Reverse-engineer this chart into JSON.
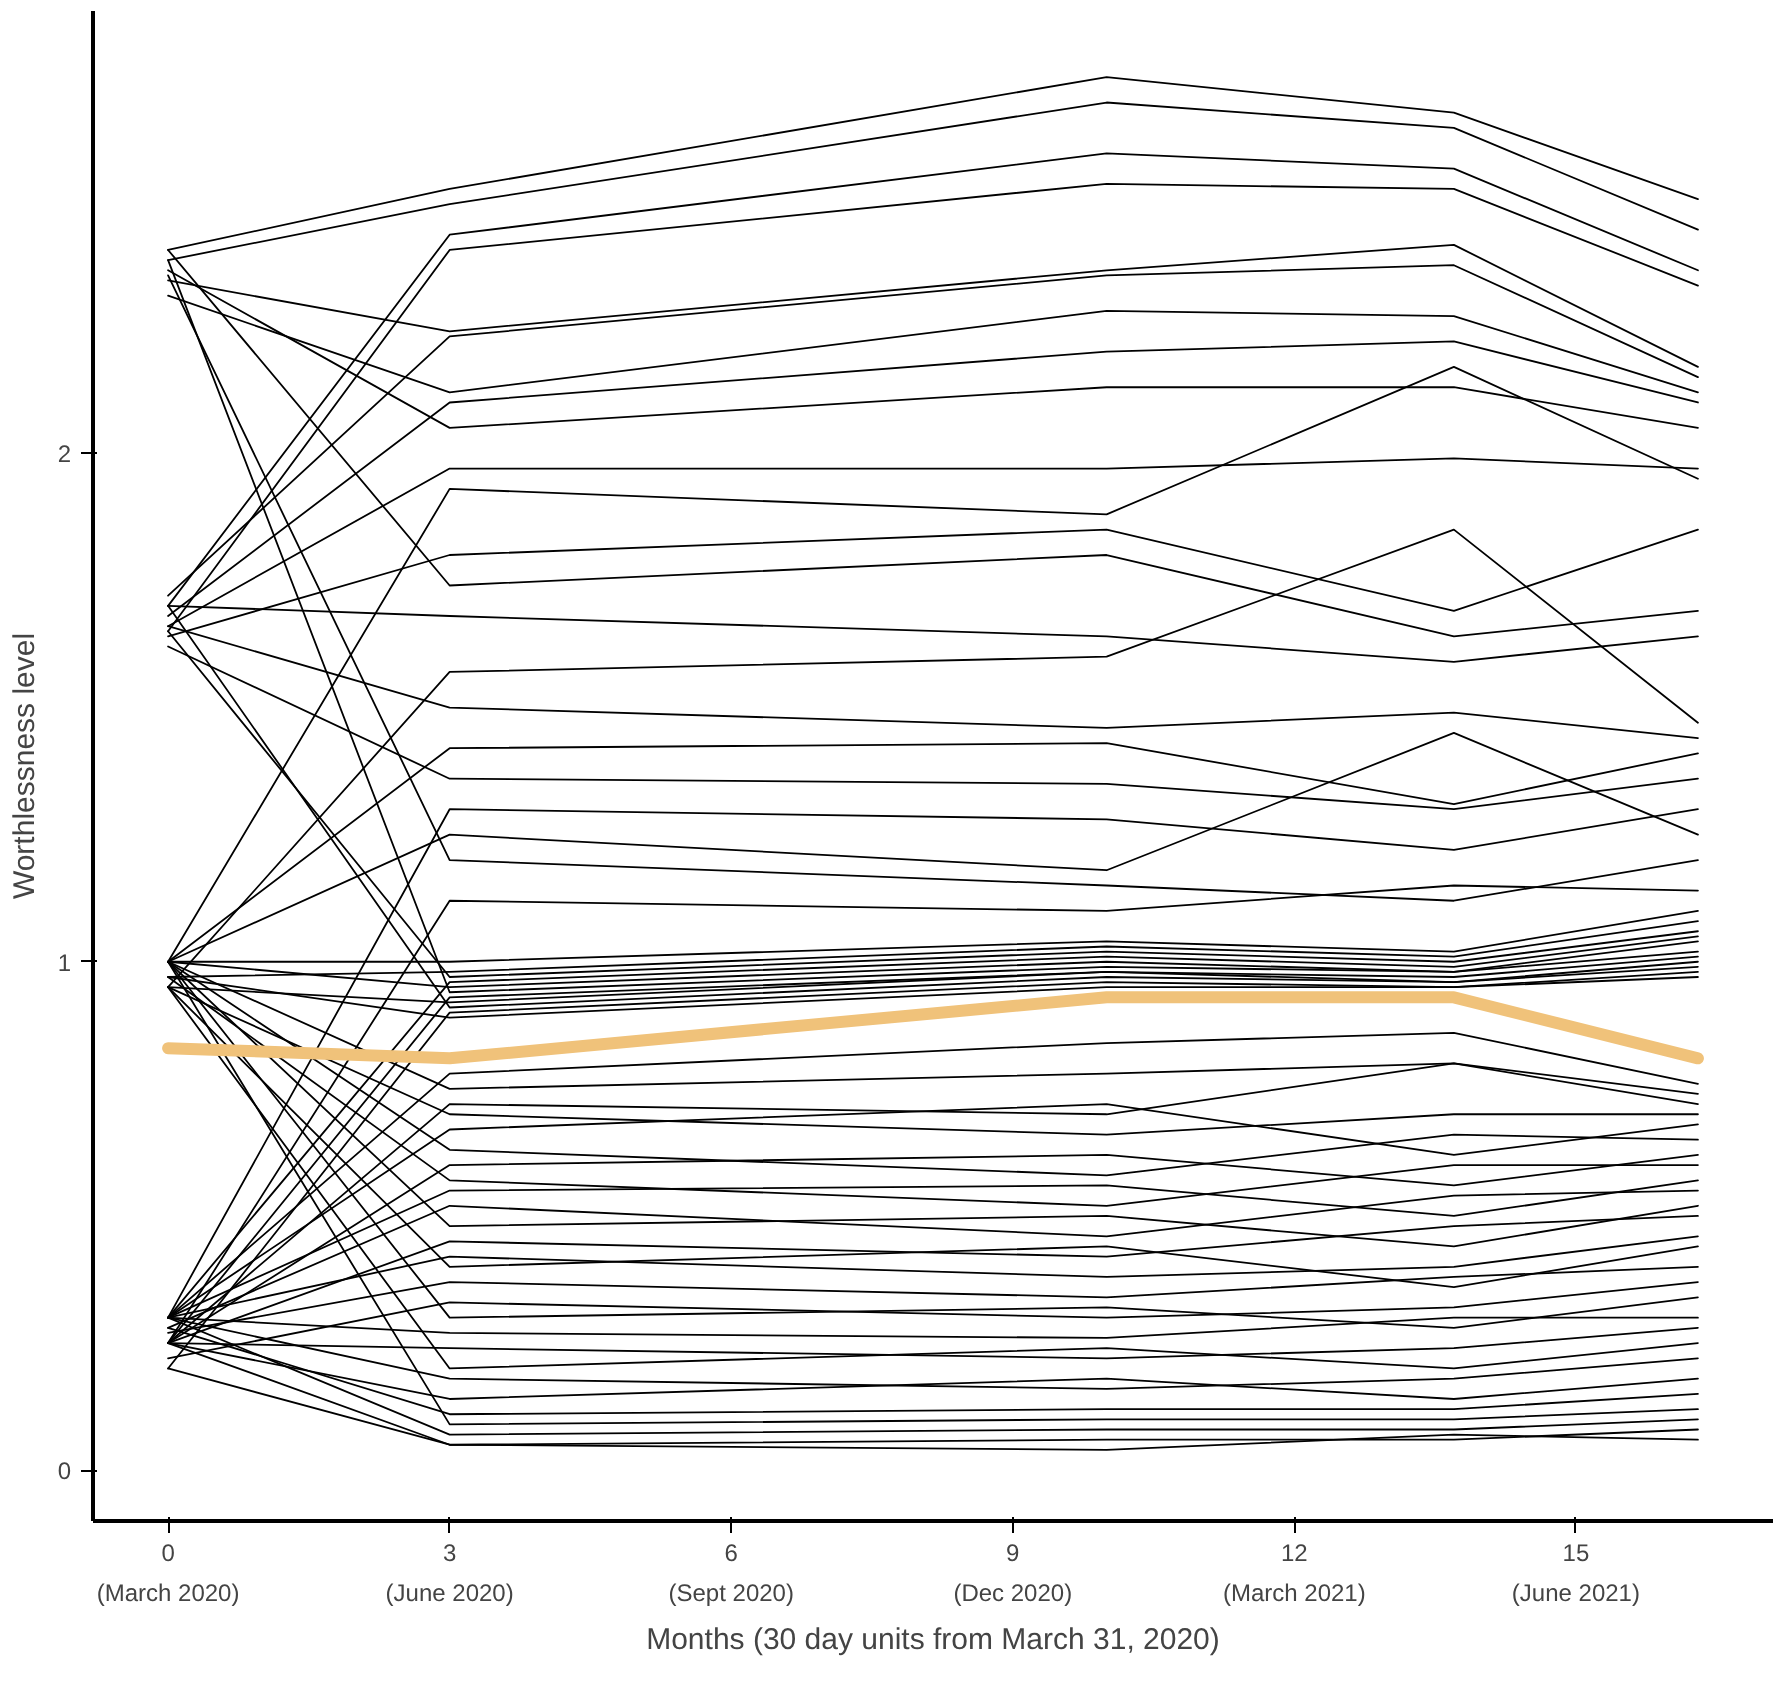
{
  "chart_data": {
    "type": "line",
    "xlabel": "Months (30 day units from March 31, 2020)",
    "ylabel": "Worthlessness level",
    "x": [
      0,
      3,
      10,
      13.7,
      16.3
    ],
    "xlim": [
      -0.8,
      17.1
    ],
    "xticks": [
      0,
      3,
      6,
      9,
      12,
      15
    ],
    "annotations": [
      "(March 2020)",
      "(June 2020)",
      "(Sept 2020)",
      "(Dec 2020)",
      "(March 2021)",
      "(June 2021)"
    ],
    "ylim": [
      -0.1,
      2.87
    ],
    "yticks": [
      0,
      1,
      2
    ],
    "grid": false,
    "marker": "none",
    "line_style": "solid",
    "color": "#000000",
    "series": [
      {
        "values": [
          2.4,
          2.52,
          2.74,
          2.67,
          2.5
        ]
      },
      {
        "values": [
          2.38,
          2.49,
          2.69,
          2.64,
          2.44
        ]
      },
      {
        "values": [
          1.7,
          2.43,
          2.59,
          2.56,
          2.36
        ]
      },
      {
        "values": [
          1.65,
          2.4,
          2.53,
          2.52,
          2.33
        ]
      },
      {
        "values": [
          2.34,
          2.24,
          2.36,
          2.41,
          2.17
        ]
      },
      {
        "values": [
          1.72,
          2.23,
          2.35,
          2.37,
          2.15
        ]
      },
      {
        "values": [
          2.31,
          2.12,
          2.28,
          2.27,
          2.12
        ]
      },
      {
        "values": [
          1.68,
          2.1,
          2.2,
          2.22,
          2.1
        ]
      },
      {
        "values": [
          2.36,
          2.05,
          2.13,
          2.13,
          2.05
        ]
      },
      {
        "values": [
          1.66,
          1.97,
          1.97,
          1.99,
          1.97
        ]
      },
      {
        "values": [
          1.0,
          1.93,
          1.88,
          2.17,
          1.95
        ]
      },
      {
        "values": [
          1.64,
          1.8,
          1.85,
          1.69,
          1.85
        ]
      },
      {
        "values": [
          2.4,
          1.74,
          1.8,
          1.64,
          1.69
        ]
      },
      {
        "values": [
          1.7,
          1.68,
          1.64,
          1.59,
          1.64
        ]
      },
      {
        "values": [
          0.95,
          1.57,
          1.6,
          1.85,
          1.47
        ]
      },
      {
        "values": [
          1.66,
          1.5,
          1.46,
          1.49,
          1.44
        ]
      },
      {
        "values": [
          1.0,
          1.42,
          1.43,
          1.31,
          1.41
        ]
      },
      {
        "values": [
          1.62,
          1.36,
          1.35,
          1.3,
          1.36
        ]
      },
      {
        "values": [
          0.3,
          1.3,
          1.28,
          1.22,
          1.3
        ]
      },
      {
        "values": [
          1.0,
          1.25,
          1.18,
          1.45,
          1.25
        ]
      },
      {
        "values": [
          2.35,
          1.2,
          1.15,
          1.12,
          1.2
        ]
      },
      {
        "values": [
          0.25,
          1.12,
          1.1,
          1.15,
          1.14
        ]
      },
      {
        "values": [
          1.0,
          1.0,
          1.04,
          1.02,
          1.1
        ]
      },
      {
        "values": [
          0.97,
          0.98,
          1.03,
          1.01,
          1.08
        ]
      },
      {
        "values": [
          1.65,
          0.97,
          1.02,
          1.0,
          1.06
        ]
      },
      {
        "values": [
          0.3,
          0.96,
          1.01,
          0.99,
          1.05
        ]
      },
      {
        "values": [
          1.0,
          0.95,
          1.0,
          0.98,
          1.04
        ]
      },
      {
        "values": [
          2.38,
          0.94,
          0.99,
          0.98,
          1.02
        ]
      },
      {
        "values": [
          0.25,
          0.93,
          0.98,
          0.97,
          1.01
        ]
      },
      {
        "values": [
          0.95,
          0.92,
          0.98,
          0.96,
          1.0
        ]
      },
      {
        "values": [
          1.7,
          0.91,
          0.97,
          0.96,
          0.99
        ]
      },
      {
        "values": [
          0.2,
          0.9,
          0.96,
          0.95,
          0.98
        ]
      },
      {
        "values": [
          0.97,
          0.89,
          0.95,
          0.95,
          0.97
        ]
      },
      {
        "values": [
          0.3,
          0.78,
          0.84,
          0.86,
          0.76
        ]
      },
      {
        "values": [
          1.0,
          0.75,
          0.78,
          0.8,
          0.74
        ]
      },
      {
        "values": [
          0.25,
          0.72,
          0.7,
          0.8,
          0.72
        ]
      },
      {
        "values": [
          0.95,
          0.7,
          0.66,
          0.7,
          0.7
        ]
      },
      {
        "values": [
          0.3,
          0.67,
          0.72,
          0.62,
          0.68
        ]
      },
      {
        "values": [
          1.0,
          0.63,
          0.58,
          0.66,
          0.65
        ]
      },
      {
        "values": [
          0.25,
          0.6,
          0.62,
          0.56,
          0.62
        ]
      },
      {
        "values": [
          0.97,
          0.57,
          0.52,
          0.6,
          0.6
        ]
      },
      {
        "values": [
          0.3,
          0.55,
          0.56,
          0.5,
          0.57
        ]
      },
      {
        "values": [
          0.28,
          0.52,
          0.46,
          0.54,
          0.55
        ]
      },
      {
        "values": [
          1.0,
          0.48,
          0.5,
          0.44,
          0.52
        ]
      },
      {
        "values": [
          0.25,
          0.45,
          0.42,
          0.48,
          0.5
        ]
      },
      {
        "values": [
          0.3,
          0.42,
          0.38,
          0.4,
          0.46
        ]
      },
      {
        "values": [
          0.95,
          0.4,
          0.44,
          0.36,
          0.44
        ]
      },
      {
        "values": [
          0.27,
          0.37,
          0.34,
          0.38,
          0.4
        ]
      },
      {
        "values": [
          0.22,
          0.33,
          0.3,
          0.32,
          0.37
        ]
      },
      {
        "values": [
          1.0,
          0.3,
          0.32,
          0.28,
          0.34
        ]
      },
      {
        "values": [
          0.3,
          0.27,
          0.26,
          0.3,
          0.3
        ]
      },
      {
        "values": [
          0.25,
          0.24,
          0.22,
          0.24,
          0.28
        ]
      },
      {
        "values": [
          0.95,
          0.2,
          0.24,
          0.2,
          0.25
        ]
      },
      {
        "values": [
          0.3,
          0.18,
          0.16,
          0.18,
          0.22
        ]
      },
      {
        "values": [
          0.25,
          0.14,
          0.18,
          0.14,
          0.18
        ]
      },
      {
        "values": [
          0.28,
          0.11,
          0.12,
          0.12,
          0.15
        ]
      },
      {
        "values": [
          1.0,
          0.09,
          0.1,
          0.1,
          0.12
        ]
      },
      {
        "values": [
          0.3,
          0.07,
          0.08,
          0.08,
          0.1
        ]
      },
      {
        "values": [
          0.25,
          0.05,
          0.06,
          0.06,
          0.08
        ]
      },
      {
        "values": [
          0.2,
          0.05,
          0.04,
          0.07,
          0.06
        ]
      },
      {
        "color": "#f0c27a",
        "values": [
          0.83,
          0.81,
          0.93,
          0.93,
          0.81
        ]
      }
    ]
  }
}
